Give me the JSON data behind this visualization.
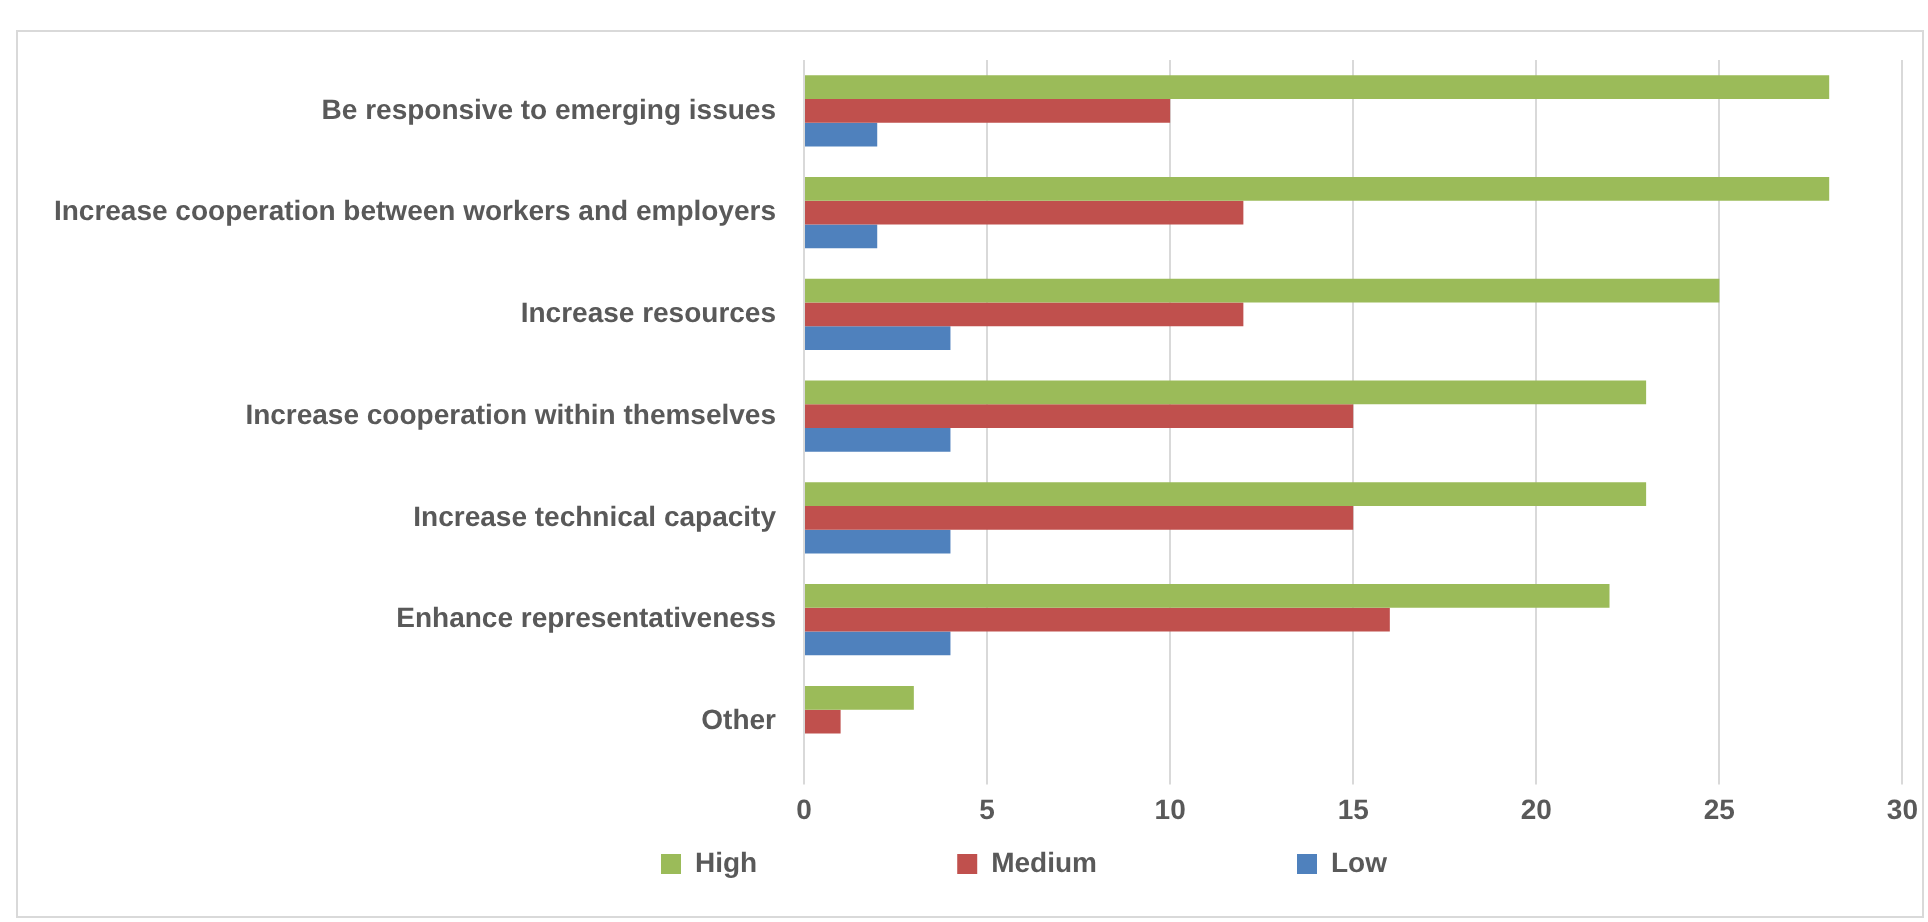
{
  "chart_data": {
    "type": "bar",
    "orientation": "horizontal",
    "categories": [
      "Be responsive to emerging issues",
      "Increase cooperation between workers and employers",
      "Increase resources",
      "Increase cooperation within themselves",
      "Increase technical capacity",
      "Enhance representativeness",
      "Other"
    ],
    "series": [
      {
        "name": "High",
        "color": "#9bbb59",
        "values": [
          28,
          28,
          25,
          23,
          23,
          22,
          3
        ]
      },
      {
        "name": "Medium",
        "color": "#c0504d",
        "values": [
          10,
          12,
          12,
          15,
          15,
          16,
          1
        ]
      },
      {
        "name": "Low",
        "color": "#4f81bd",
        "values": [
          2,
          2,
          4,
          4,
          4,
          4,
          0
        ]
      }
    ],
    "xlim": [
      0,
      30
    ],
    "xticks": [
      0,
      5,
      10,
      15,
      20,
      25,
      30
    ],
    "grid": "x",
    "legend": "bottom"
  }
}
